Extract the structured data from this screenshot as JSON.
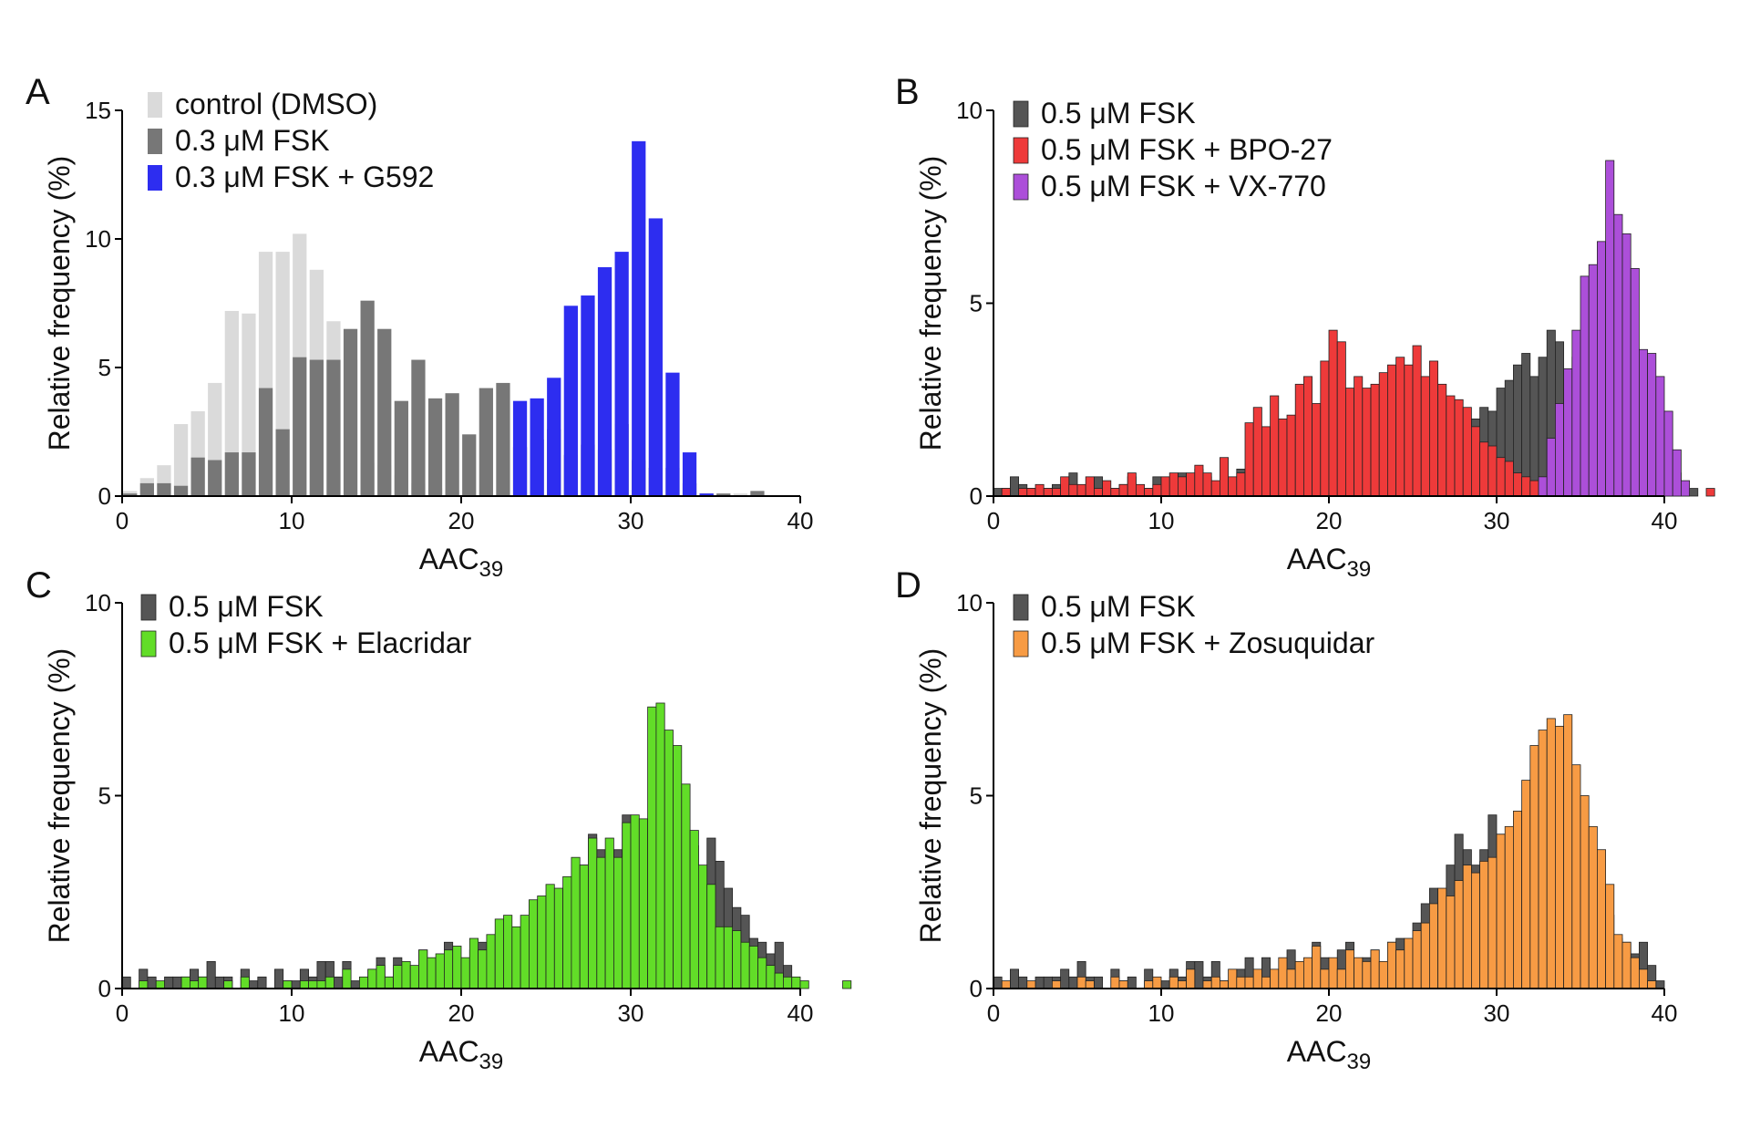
{
  "colors": {
    "control": "#dadada",
    "fsk_03": "#777777",
    "fsk_05": "#555555",
    "g592": "#2d2df0",
    "bpo27": "#ee3a3a",
    "vx770": "#ac4fd9",
    "elacridar": "#62dd28",
    "zosuquidar": "#f79b44",
    "axis": "#000000",
    "outline": "#222222"
  },
  "chart_data": [
    {
      "type": "bar",
      "panel": "A",
      "xlabel": "AAC",
      "xlabel_sub": "39",
      "ylabel": "Relative frequency (%)",
      "xlim": [
        0,
        40
      ],
      "ylim": [
        0,
        15
      ],
      "xticks": [
        "0",
        "10",
        "20",
        "30",
        "40"
      ],
      "yticks": [
        "0",
        "5",
        "10",
        "15"
      ],
      "legend_position": "top-left",
      "bin_width": 1,
      "x": [
        0,
        1,
        2,
        3,
        4,
        5,
        6,
        7,
        8,
        9,
        10,
        11,
        12,
        13,
        14,
        15,
        16,
        17,
        18,
        19,
        20,
        21,
        22,
        23,
        24,
        25,
        26,
        27,
        28,
        29,
        30,
        31,
        32,
        33,
        34,
        35,
        36,
        37
      ],
      "series": [
        {
          "name": "control (DMSO)",
          "color_key": "control",
          "values": [
            0.2,
            0.7,
            1.2,
            2.8,
            3.3,
            4.4,
            7.2,
            7.1,
            9.5,
            9.5,
            10.2,
            8.8,
            6.8,
            5.3,
            1.3,
            1.2,
            0.8,
            0.5,
            0.3,
            0.2,
            0.1,
            0.1,
            0,
            0,
            0,
            0,
            0,
            0,
            0,
            0,
            0,
            0,
            0,
            0,
            0.1,
            0.1,
            0.1,
            0.1
          ]
        },
        {
          "name": "0.3 μM FSK",
          "color_key": "fsk_03",
          "values": [
            0.1,
            0.5,
            0.5,
            0.4,
            1.5,
            1.4,
            1.7,
            1.7,
            4.2,
            2.6,
            5.4,
            5.3,
            5.3,
            6.5,
            7.6,
            6.5,
            3.7,
            5.3,
            3.8,
            4.0,
            2.4,
            4.2,
            4.4,
            1.9,
            2.2,
            2.6,
            1.6,
            2.0,
            1.8,
            2.8,
            1.4,
            1.1,
            1.1,
            0.5,
            0.1,
            0.1,
            0,
            0.2
          ]
        },
        {
          "name": "0.3 μM FSK + G592",
          "color_key": "g592",
          "values": [
            0,
            0,
            0,
            0,
            0,
            0,
            0,
            0,
            0,
            0,
            0,
            0,
            0,
            0,
            0,
            0,
            0,
            0,
            0,
            0,
            0,
            0,
            0,
            3.7,
            3.8,
            4.6,
            7.4,
            7.8,
            8.9,
            9.5,
            13.8,
            10.8,
            4.8,
            1.7,
            0.1,
            0,
            0,
            0
          ]
        }
      ]
    },
    {
      "type": "bar",
      "panel": "B",
      "xlabel": "AAC",
      "xlabel_sub": "39",
      "ylabel": "Relative frequency (%)",
      "xlim": [
        0,
        40
      ],
      "ylim": [
        0,
        10
      ],
      "xticks": [
        "0",
        "10",
        "20",
        "30",
        "40"
      ],
      "yticks": [
        "0",
        "5",
        "10"
      ],
      "legend_position": "top-left",
      "bin_width": 0.5,
      "x_start": 0,
      "series": [
        {
          "name": "0.5 μM FSK",
          "color_key": "fsk_05",
          "values": [
            0.2,
            0.2,
            0.5,
            0.3,
            0.2,
            0.2,
            0.2,
            0.3,
            0.3,
            0.6,
            0.2,
            0.2,
            0.5,
            0.2,
            0.2,
            0.3,
            0.5,
            0.2,
            0.2,
            0.5,
            0.3,
            0.2,
            0.6,
            0.3,
            0.7,
            0.5,
            0.2,
            0.3,
            0.3,
            0.7,
            0.5,
            0.3,
            0.2,
            0.6,
            0.4,
            0.5,
            0.3,
            0.3,
            0.7,
            0.5,
            0.4,
            1.0,
            0.3,
            0.6,
            0.8,
            0.6,
            0.4,
            0.7,
            0.9,
            0.8,
            1.2,
            0.8,
            1.0,
            1.3,
            1.0,
            1.3,
            1.5,
            2.0,
            2.3,
            2.2,
            2.8,
            3.0,
            3.4,
            3.7,
            3.1,
            3.6,
            4.3,
            4.0,
            3.3,
            3.6,
            3.9,
            4.3,
            4.0,
            3.9,
            3.2,
            5.3,
            2.6,
            2.0,
            1.6,
            1.2,
            1.0,
            0.6,
            0.3,
            0.2,
            0,
            0
          ]
        },
        {
          "name": "0.5 μM FSK + BPO-27",
          "color_key": "bpo27",
          "values": [
            0,
            0.2,
            0,
            0.2,
            0.2,
            0.3,
            0.2,
            0.2,
            0.5,
            0.3,
            0.3,
            0.5,
            0.2,
            0.4,
            0.2,
            0.3,
            0.6,
            0.3,
            0.2,
            0.3,
            0.5,
            0.6,
            0.5,
            0.6,
            0.8,
            0.6,
            0.4,
            1.0,
            0.5,
            0.6,
            1.9,
            2.3,
            1.8,
            2.6,
            2.0,
            2.1,
            2.9,
            3.1,
            2.4,
            3.5,
            4.3,
            4.0,
            2.8,
            3.1,
            2.8,
            2.9,
            3.2,
            3.4,
            3.6,
            3.4,
            3.9,
            3.1,
            3.5,
            2.9,
            2.6,
            2.5,
            2.3,
            1.8,
            1.4,
            1.3,
            1.0,
            0.9,
            0.6,
            0.5,
            0.4,
            0.4,
            0.3,
            0.2,
            0.2,
            0.1,
            0.1,
            0.1,
            0.2,
            0.1,
            0.1,
            0.1,
            0.1,
            0.1,
            0,
            0,
            0,
            0,
            0,
            0,
            0,
            0.2
          ]
        },
        {
          "name": "0.5 μM FSK + VX-770",
          "color_key": "vx770",
          "values": [
            0,
            0,
            0,
            0,
            0,
            0,
            0,
            0,
            0,
            0,
            0,
            0,
            0,
            0,
            0,
            0,
            0,
            0,
            0,
            0,
            0,
            0,
            0,
            0,
            0,
            0,
            0,
            0,
            0,
            0,
            0,
            0,
            0,
            0,
            0,
            0,
            0,
            0,
            0,
            0,
            0,
            0,
            0,
            0,
            0,
            0,
            0,
            0,
            0,
            0,
            0,
            0,
            0,
            0,
            0,
            0,
            0,
            0,
            0,
            0,
            0,
            0,
            0,
            0,
            0,
            0.5,
            1.5,
            2.4,
            3.3,
            4.3,
            5.7,
            6.0,
            6.6,
            8.7,
            7.3,
            6.8,
            5.9,
            3.8,
            3.7,
            3.1,
            2.2,
            1.2,
            0.4,
            0,
            0,
            0
          ]
        }
      ]
    },
    {
      "type": "bar",
      "panel": "C",
      "xlabel": "AAC",
      "xlabel_sub": "39",
      "ylabel": "Relative frequency (%)",
      "xlim": [
        0,
        40
      ],
      "ylim": [
        0,
        10
      ],
      "xticks": [
        "0",
        "10",
        "20",
        "30",
        "40"
      ],
      "yticks": [
        "0",
        "5",
        "10"
      ],
      "legend_position": "top-left",
      "bin_width": 0.5,
      "x_start": 0,
      "series": [
        {
          "name": "0.5 μM FSK",
          "color_key": "fsk_05",
          "values": [
            0.3,
            0,
            0.5,
            0.3,
            0,
            0.3,
            0.3,
            0.3,
            0.5,
            0.3,
            0.7,
            0.3,
            0.3,
            0,
            0.5,
            0.2,
            0.3,
            0,
            0.5,
            0.2,
            0.2,
            0.5,
            0.3,
            0.7,
            0.7,
            0.3,
            0.7,
            0.2,
            0.2,
            0.5,
            0.8,
            0.3,
            0.8,
            0.3,
            0.5,
            1.0,
            0.5,
            0.7,
            1.2,
            0.8,
            0.5,
            1.0,
            1.2,
            0.5,
            0.8,
            1.0,
            0.7,
            1.2,
            1.3,
            1.0,
            1.7,
            2.2,
            2.6,
            2.2,
            3.2,
            4.0,
            3.6,
            3.2,
            3.6,
            4.5,
            4.0,
            3.4,
            3.7,
            4.2,
            5.2,
            3.2,
            3.4,
            3.7,
            3.1,
            3.9,
            3.3,
            2.6,
            2.1,
            1.9,
            1.3,
            1.2,
            0.9,
            1.2,
            0.6,
            0.2,
            0,
            0,
            0,
            0,
            0,
            0
          ]
        },
        {
          "name": "0.5 μM FSK + Elacridar",
          "color_key": "elacridar",
          "values": [
            0,
            0,
            0.2,
            0,
            0.2,
            0,
            0,
            0.3,
            0.2,
            0.3,
            0,
            0,
            0.2,
            0,
            0.3,
            0,
            0,
            0,
            0,
            0.2,
            0,
            0.2,
            0.2,
            0.2,
            0.3,
            0,
            0.5,
            0,
            0.3,
            0.5,
            0.6,
            0.3,
            0.6,
            0.7,
            0.6,
            1.0,
            0.8,
            0.9,
            1.0,
            1.1,
            0.8,
            1.3,
            1.0,
            1.4,
            1.8,
            1.9,
            1.6,
            1.9,
            2.3,
            2.4,
            2.7,
            2.6,
            2.9,
            3.4,
            3.2,
            3.9,
            3.4,
            3.9,
            3.4,
            4.3,
            4.5,
            4.4,
            7.3,
            7.4,
            6.7,
            6.3,
            5.3,
            4.1,
            3.2,
            2.7,
            1.6,
            1.6,
            1.5,
            1.2,
            1.1,
            0.8,
            0.6,
            0.4,
            0.3,
            0.3,
            0.2,
            0,
            0,
            0,
            0,
            0.2
          ]
        }
      ]
    },
    {
      "type": "bar",
      "panel": "D",
      "xlabel": "AAC",
      "xlabel_sub": "39",
      "ylabel": "Relative frequency (%)",
      "xlim": [
        0,
        40
      ],
      "ylim": [
        0,
        10
      ],
      "xticks": [
        "0",
        "10",
        "20",
        "30",
        "40"
      ],
      "yticks": [
        "0",
        "5",
        "10"
      ],
      "legend_position": "top-left",
      "bin_width": 0.5,
      "x_start": 0,
      "series": [
        {
          "name": "0.5 μM FSK",
          "color_key": "fsk_05",
          "values": [
            0.3,
            0,
            0.5,
            0.3,
            0,
            0.3,
            0.3,
            0.3,
            0.5,
            0.3,
            0.7,
            0.3,
            0.3,
            0,
            0.5,
            0.2,
            0.3,
            0,
            0.5,
            0.2,
            0.2,
            0.5,
            0.3,
            0.7,
            0.7,
            0.3,
            0.7,
            0.2,
            0.2,
            0.5,
            0.8,
            0.3,
            0.8,
            0.3,
            0.5,
            1.0,
            0.5,
            0.7,
            1.2,
            0.8,
            0.5,
            1.0,
            1.2,
            0.5,
            0.8,
            1.0,
            0.7,
            1.2,
            1.3,
            1.0,
            1.7,
            2.2,
            2.6,
            2.2,
            3.2,
            4.0,
            3.6,
            3.2,
            3.6,
            4.5,
            4.0,
            3.4,
            3.7,
            4.2,
            5.2,
            3.2,
            3.4,
            3.7,
            3.1,
            3.9,
            3.3,
            2.6,
            2.1,
            1.9,
            1.3,
            1.2,
            0.9,
            1.2,
            0.6,
            0.2,
            0,
            0,
            0,
            0,
            0,
            0
          ]
        },
        {
          "name": "0.5 μM FSK + Zosuquidar",
          "color_key": "zosuquidar",
          "values": [
            0,
            0.2,
            0,
            0,
            0.2,
            0,
            0,
            0.2,
            0,
            0,
            0.3,
            0.2,
            0,
            0,
            0.3,
            0.2,
            0,
            0,
            0.2,
            0.3,
            0,
            0.3,
            0.2,
            0.5,
            0,
            0.2,
            0.3,
            0.2,
            0.5,
            0.3,
            0.3,
            0.5,
            0.3,
            0.5,
            0.8,
            0.5,
            0.7,
            0.8,
            1.1,
            0.5,
            0.8,
            0.5,
            1.0,
            0.8,
            0.7,
            1.0,
            0.7,
            1.2,
            1.0,
            1.3,
            1.5,
            1.7,
            2.2,
            2.6,
            2.4,
            2.8,
            3.2,
            3.0,
            3.3,
            3.4,
            4.0,
            4.2,
            4.6,
            5.4,
            6.3,
            6.7,
            7.0,
            6.8,
            7.1,
            5.8,
            5.0,
            4.2,
            3.6,
            2.7,
            1.4,
            1.2,
            0.8,
            0.5,
            0.2,
            0,
            0,
            0,
            0,
            0,
            0,
            0
          ]
        }
      ]
    }
  ],
  "panels": [
    {
      "letter": "A"
    },
    {
      "letter": "B"
    },
    {
      "letter": "C"
    },
    {
      "letter": "D"
    }
  ]
}
